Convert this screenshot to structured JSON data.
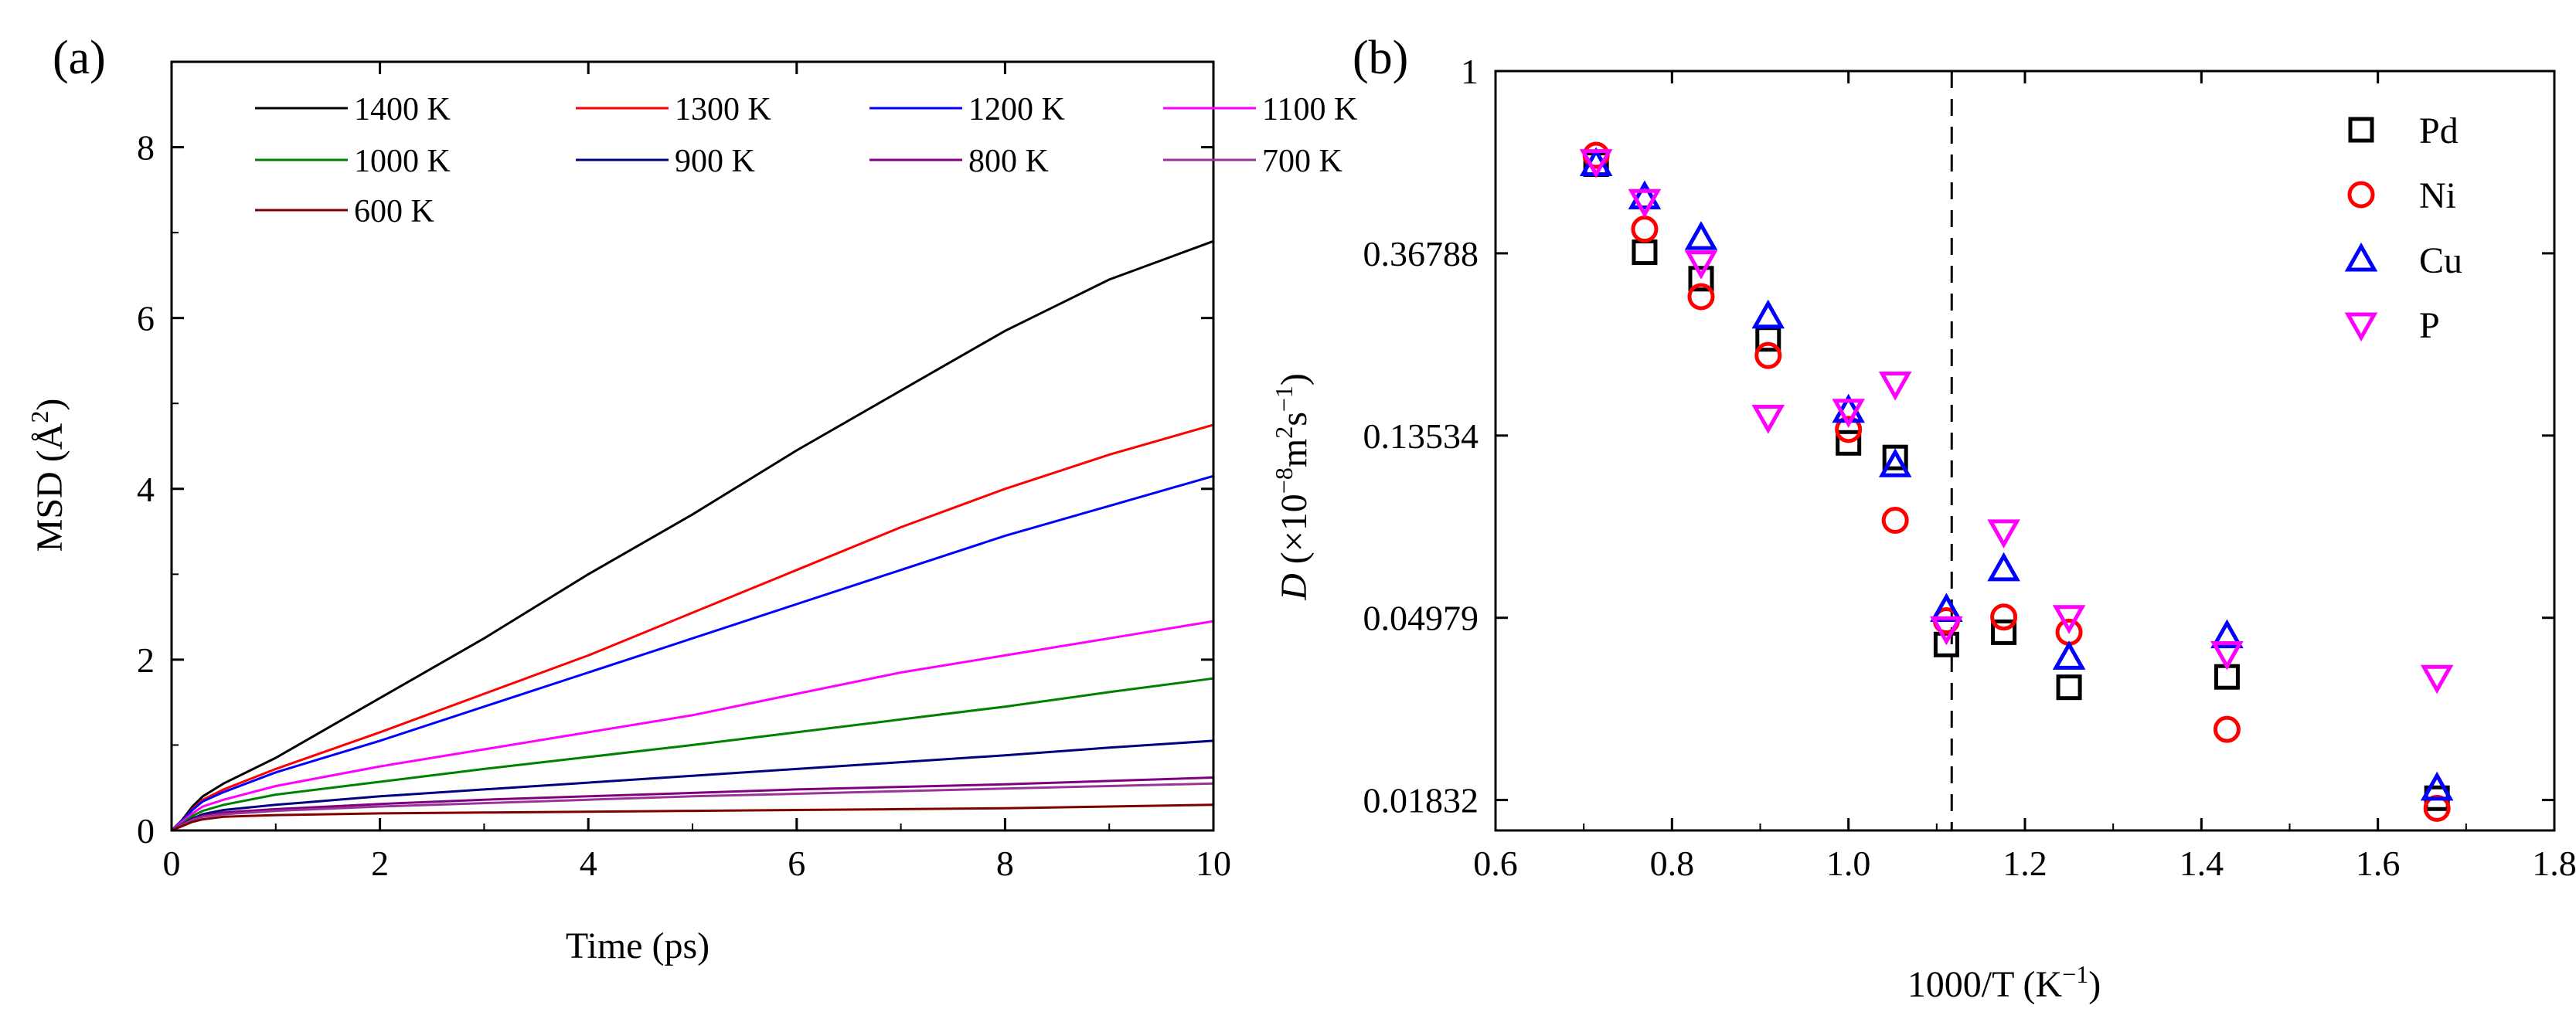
{
  "chart_data": [
    {
      "panel": "(a)",
      "type": "line",
      "xlabel": "Time (ps)",
      "ylabel_main": "MSD (",
      "ylabel_unit": "Å",
      "ylabel_sup": "2",
      "ylabel_close": ")",
      "xlim": [
        0,
        10
      ],
      "ylim": [
        0,
        9
      ],
      "xticks": [
        0,
        2,
        4,
        6,
        8,
        10
      ],
      "yticks": [
        0,
        2,
        4,
        6,
        8
      ],
      "x": [
        0,
        0.1,
        0.2,
        0.3,
        0.5,
        1,
        2,
        3,
        4,
        5,
        6,
        7,
        8,
        9,
        10
      ],
      "series": [
        {
          "name": "1400 K",
          "color": "#000000",
          "values": [
            0,
            0.12,
            0.28,
            0.4,
            0.55,
            0.85,
            1.55,
            2.25,
            3.0,
            3.7,
            4.45,
            5.15,
            5.85,
            6.45,
            6.9
          ]
        },
        {
          "name": "1300 K",
          "color": "#ff0000",
          "values": [
            0,
            0.11,
            0.25,
            0.36,
            0.48,
            0.72,
            1.15,
            1.6,
            2.05,
            2.55,
            3.05,
            3.55,
            4.0,
            4.4,
            4.75
          ]
        },
        {
          "name": "1200 K",
          "color": "#0000ff",
          "values": [
            0,
            0.11,
            0.24,
            0.34,
            0.45,
            0.68,
            1.05,
            1.45,
            1.85,
            2.25,
            2.65,
            3.05,
            3.45,
            3.8,
            4.15
          ]
        },
        {
          "name": "1100 K",
          "color": "#ff00ff",
          "values": [
            0,
            0.1,
            0.2,
            0.28,
            0.36,
            0.52,
            0.75,
            0.95,
            1.15,
            1.35,
            1.6,
            1.85,
            2.05,
            2.25,
            2.45
          ]
        },
        {
          "name": "1000 K",
          "color": "#008000",
          "values": [
            0,
            0.08,
            0.17,
            0.23,
            0.3,
            0.42,
            0.57,
            0.72,
            0.86,
            1.0,
            1.15,
            1.3,
            1.45,
            1.62,
            1.78
          ]
        },
        {
          "name": "900 K",
          "color": "#000080",
          "values": [
            0,
            0.07,
            0.14,
            0.19,
            0.24,
            0.3,
            0.4,
            0.48,
            0.56,
            0.64,
            0.72,
            0.8,
            0.88,
            0.97,
            1.05
          ]
        },
        {
          "name": "800 K",
          "color": "#800080",
          "values": [
            0,
            0.07,
            0.13,
            0.17,
            0.21,
            0.25,
            0.31,
            0.36,
            0.4,
            0.44,
            0.48,
            0.51,
            0.54,
            0.58,
            0.62
          ]
        },
        {
          "name": "700 K",
          "color": "#993399",
          "values": [
            0,
            0.06,
            0.12,
            0.16,
            0.19,
            0.23,
            0.28,
            0.32,
            0.36,
            0.4,
            0.43,
            0.46,
            0.49,
            0.52,
            0.55
          ]
        },
        {
          "name": "600 K",
          "color": "#800000",
          "values": [
            0,
            0.05,
            0.1,
            0.13,
            0.16,
            0.18,
            0.2,
            0.21,
            0.22,
            0.23,
            0.24,
            0.25,
            0.26,
            0.28,
            0.3
          ]
        }
      ],
      "legend": "top-left, 4 columns"
    },
    {
      "panel": "(b)",
      "type": "scatter",
      "xlabel_main": "1000/T (K",
      "xlabel_sup": "−1",
      "xlabel_close": ")",
      "ylabel_italic": "D",
      "ylabel_main": " (×10",
      "ylabel_sup1": "−8",
      "ylabel_mid": "m",
      "ylabel_sup2": "2",
      "ylabel_mid2": "s",
      "ylabel_sup3": "−1",
      "ylabel_close": ")",
      "y_scale": "natural log",
      "xlim": [
        0.6,
        1.8
      ],
      "ylim": [
        0.0155,
        1.0
      ],
      "xticks": [
        "0.6",
        "0.8",
        "1.0",
        "1.2",
        "1.4",
        "1.6",
        "1.8"
      ],
      "yticks": [
        {
          "value": 1.0,
          "label": "1"
        },
        {
          "value": 0.36788,
          "label": "0.36788"
        },
        {
          "value": 0.13534,
          "label": "0.13534"
        },
        {
          "value": 0.04979,
          "label": "0.04979"
        },
        {
          "value": 0.01832,
          "label": "0.01832"
        }
      ],
      "vline_x": 1.117,
      "x": [
        0.714,
        0.769,
        0.833,
        0.909,
        1.0,
        1.053,
        1.111,
        1.176,
        1.25,
        1.429,
        1.667
      ],
      "series": [
        {
          "name": "Pd",
          "marker": "square",
          "color": "#000000",
          "values": [
            0.6,
            0.37,
            0.32,
            0.23,
            0.13,
            0.12,
            0.043,
            0.046,
            0.034,
            0.036,
            0.0185
          ]
        },
        {
          "name": "Ni",
          "marker": "circle",
          "color": "#ff0000",
          "values": [
            0.63,
            0.42,
            0.29,
            0.21,
            0.14,
            0.085,
            0.049,
            0.05,
            0.046,
            0.027,
            0.0175
          ]
        },
        {
          "name": "Cu",
          "marker": "triangle-up",
          "color": "#0000ff",
          "values": [
            0.6,
            0.5,
            0.4,
            0.26,
            0.155,
            0.115,
            0.052,
            0.065,
            0.04,
            0.045,
            0.0195
          ]
        },
        {
          "name": "P",
          "marker": "triangle-down",
          "color": "#ff00ff",
          "values": [
            0.61,
            0.49,
            0.35,
            0.15,
            0.155,
            0.18,
            0.047,
            0.08,
            0.05,
            0.041,
            0.036
          ]
        }
      ],
      "legend": "top-right"
    }
  ]
}
